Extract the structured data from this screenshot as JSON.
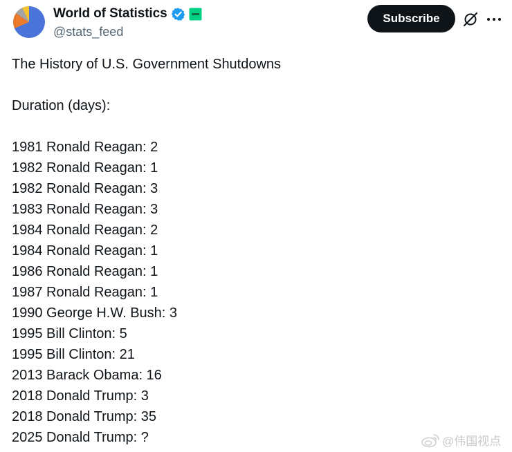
{
  "account": {
    "display_name": "World of Statistics",
    "handle": "@stats_feed",
    "verified_icon": "verified-badge-icon",
    "affiliate_badge": "affiliate-badge-icon"
  },
  "actions": {
    "subscribe_label": "Subscribe",
    "grok_icon": "grok-icon",
    "more_icon": "more-dots-icon"
  },
  "tweet": {
    "title": "The History of U.S. Government Shutdowns",
    "subtitle": "Duration (days):",
    "entries": [
      "1981 Ronald Reagan: 2",
      "1982 Ronald Reagan: 1",
      "1982 Ronald Reagan: 3",
      "1983 Ronald Reagan: 3",
      "1984 Ronald Reagan: 2",
      "1984 Ronald Reagan: 1",
      "1986 Ronald Reagan: 1",
      "1987 Ronald Reagan: 1",
      "1990 George H.W. Bush: 3",
      "1995 Bill Clinton: 5",
      "1995 Bill Clinton: 21",
      "2013 Barack Obama: 16",
      "2018 Donald Trump: 3",
      "2018 Donald Trump: 35",
      "2025 Donald Trump: ?"
    ]
  },
  "watermark": {
    "text": "@伟国视点"
  },
  "colors": {
    "text": "#0f1419",
    "secondary": "#536471",
    "verified": "#1d9bf0",
    "button_bg": "#0f1419",
    "affiliate_green": "#00d084"
  }
}
